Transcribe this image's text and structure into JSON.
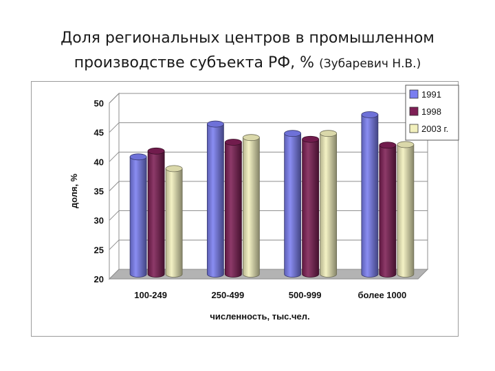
{
  "title": {
    "line1": "Доля региональных центров в промышленном",
    "line2": "производстве субъекта РФ, %",
    "source": "(Зубаревич Н.В.)"
  },
  "chart_data": {
    "type": "bar",
    "categories": [
      "100-249",
      "250-499",
      "500-999",
      "более 1000"
    ],
    "series": [
      {
        "name": "1991",
        "values": [
          40,
          45.6,
          44,
          47.2
        ],
        "color": "#7a7ef0"
      },
      {
        "name": "1998",
        "values": [
          41,
          42.5,
          43,
          42
        ],
        "color": "#7e1f55"
      },
      {
        "name": "2003 г.",
        "values": [
          38,
          43.3,
          44,
          42.1
        ],
        "color": "#f2f0bd"
      }
    ],
    "xlabel": "численность, тыс.чел.",
    "ylabel": "доля, %",
    "ylim": [
      20,
      50
    ],
    "yticks": [
      20,
      25,
      30,
      35,
      40,
      45,
      50
    ],
    "grid": true,
    "legend_position": "top-right",
    "three_d": true
  }
}
